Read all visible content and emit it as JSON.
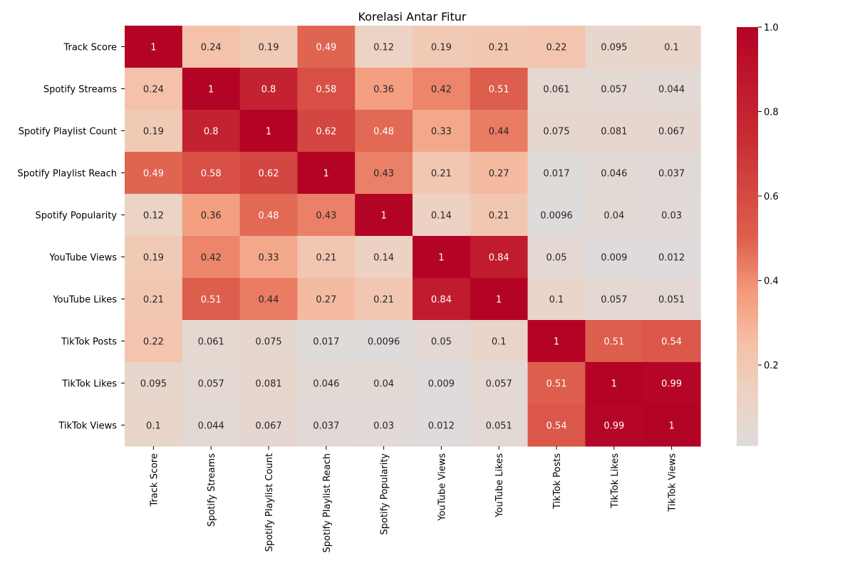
{
  "chart_data": {
    "type": "heatmap",
    "title": "Korelasi Antar Fitur",
    "xlabel": "",
    "ylabel": "",
    "labels": [
      "Track Score",
      "Spotify Streams",
      "Spotify Playlist Count",
      "Spotify Playlist Reach",
      "Spotify Popularity",
      "YouTube Views",
      "YouTube Likes",
      "TikTok Posts",
      "TikTok Likes",
      "TikTok Views"
    ],
    "matrix": [
      [
        "1",
        "0.24",
        "0.19",
        "0.49",
        "0.12",
        "0.19",
        "0.21",
        "0.22",
        "0.095",
        "0.1"
      ],
      [
        "0.24",
        "1",
        "0.8",
        "0.58",
        "0.36",
        "0.42",
        "0.51",
        "0.061",
        "0.057",
        "0.044"
      ],
      [
        "0.19",
        "0.8",
        "1",
        "0.62",
        "0.48",
        "0.33",
        "0.44",
        "0.075",
        "0.081",
        "0.067"
      ],
      [
        "0.49",
        "0.58",
        "0.62",
        "1",
        "0.43",
        "0.21",
        "0.27",
        "0.017",
        "0.046",
        "0.037"
      ],
      [
        "0.12",
        "0.36",
        "0.48",
        "0.43",
        "1",
        "0.14",
        "0.21",
        "0.0096",
        "0.04",
        "0.03"
      ],
      [
        "0.19",
        "0.42",
        "0.33",
        "0.21",
        "0.14",
        "1",
        "0.84",
        "0.05",
        "0.009",
        "0.012"
      ],
      [
        "0.21",
        "0.51",
        "0.44",
        "0.27",
        "0.21",
        "0.84",
        "1",
        "0.1",
        "0.057",
        "0.051"
      ],
      [
        "0.22",
        "0.061",
        "0.075",
        "0.017",
        "0.0096",
        "0.05",
        "0.1",
        "1",
        "0.51",
        "0.54"
      ],
      [
        "0.095",
        "0.057",
        "0.081",
        "0.046",
        "0.04",
        "0.009",
        "0.057",
        "0.51",
        "1",
        "0.99"
      ],
      [
        "0.1",
        "0.044",
        "0.067",
        "0.037",
        "0.03",
        "0.012",
        "0.051",
        "0.54",
        "0.99",
        "1"
      ]
    ],
    "colorbar": {
      "ticks": [
        "0.2",
        "0.4",
        "0.6",
        "0.8",
        "1.0"
      ],
      "range": [
        0.0096,
        1.0
      ],
      "center": 0,
      "colormap": "coolwarm",
      "low_color": "#dddcdc",
      "high_color": "#b40426"
    },
    "legend": "right",
    "grid": false
  }
}
